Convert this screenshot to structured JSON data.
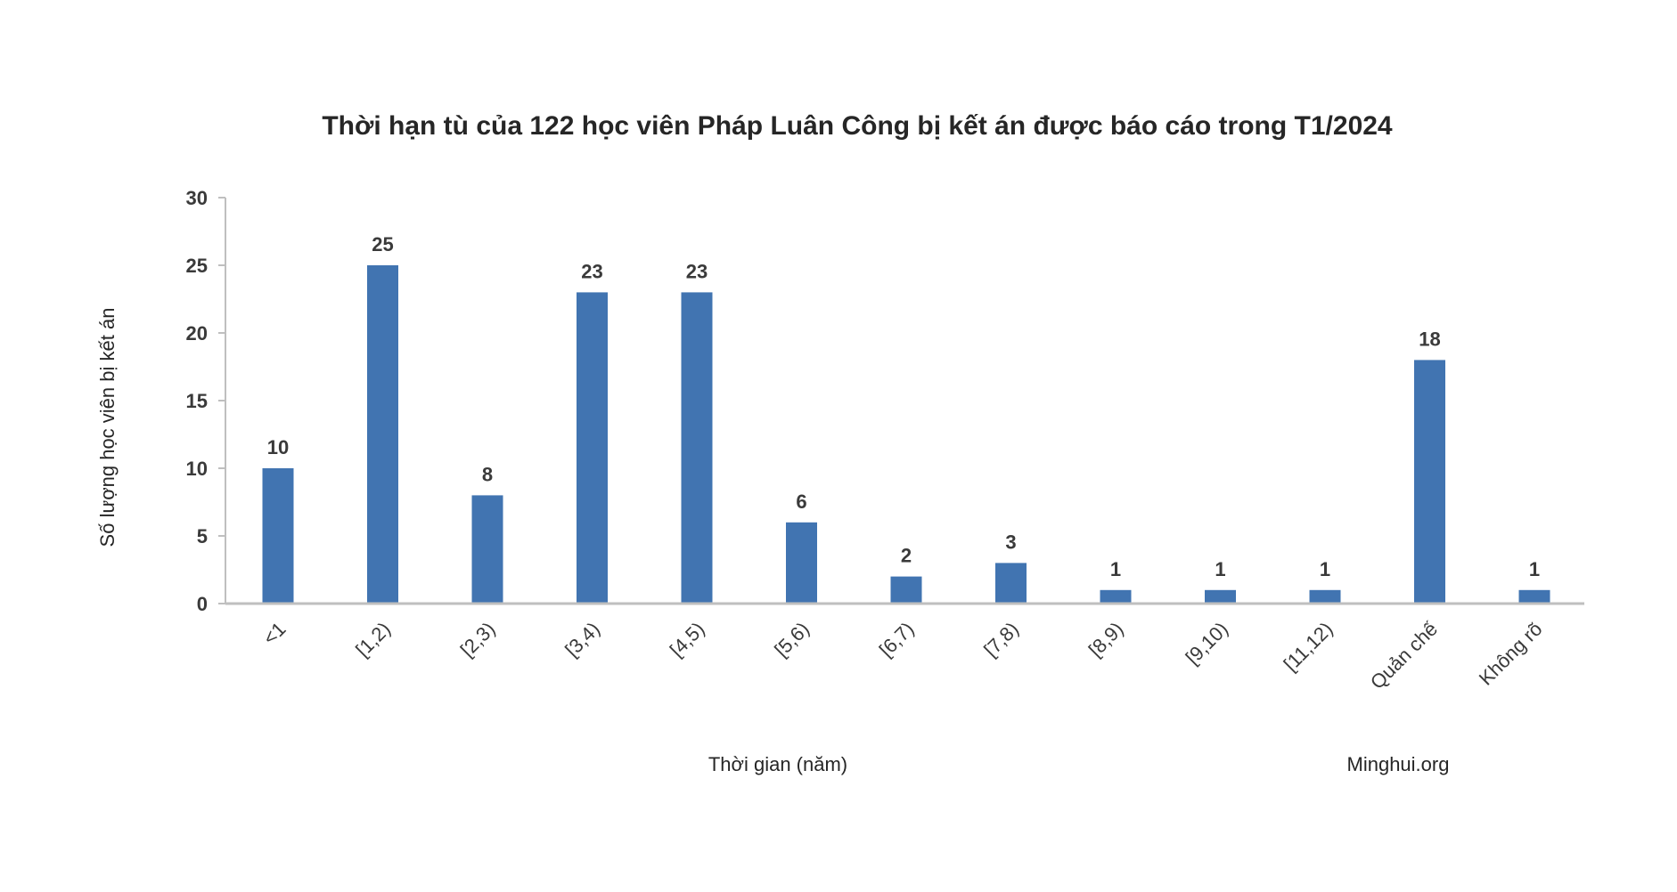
{
  "chart_data": {
    "type": "bar",
    "title": "Thời hạn tù của 122 học viên Pháp Luân Công bị kết án được báo cáo trong T1/2024",
    "xlabel": "Thời gian (năm)",
    "ylabel": "Số lượng học viên bị kết án",
    "source": "Minghui.org",
    "categories": [
      "<1",
      "[1,2)",
      "[2,3)",
      "[3,4)",
      "[4,5)",
      "[5,6)",
      "[6,7)",
      "[7,8)",
      "[8,9)",
      "[9,10)",
      "[11,12)",
      "Quản chế",
      "Không rõ"
    ],
    "values": [
      10,
      25,
      8,
      23,
      23,
      6,
      2,
      3,
      1,
      1,
      1,
      18,
      1
    ],
    "ylim": [
      0,
      30
    ],
    "yticks": [
      0,
      5,
      10,
      15,
      20,
      25,
      30
    ],
    "grid": false,
    "legend": "none",
    "bar_color": "#4174B1",
    "axis_color": "#BFBFBF"
  }
}
